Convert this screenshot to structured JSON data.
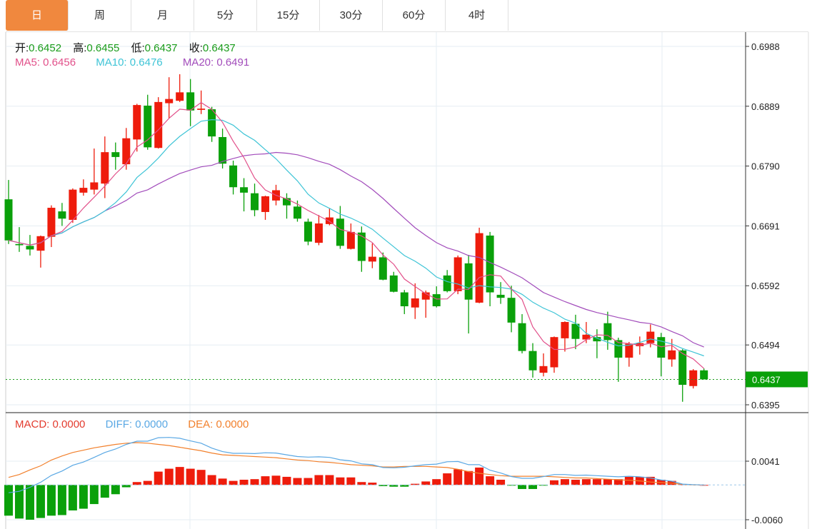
{
  "tabs": [
    {
      "label": "日",
      "active": true
    },
    {
      "label": "周"
    },
    {
      "label": "月"
    },
    {
      "label": "5分"
    },
    {
      "label": "15分"
    },
    {
      "label": "30分"
    },
    {
      "label": "60分"
    },
    {
      "label": "4时"
    }
  ],
  "ohlc_info": {
    "open_label": "开:",
    "open": "0.6452",
    "high_label": "高:",
    "high": "0.6455",
    "low_label": "低:",
    "low": "0.6437",
    "close_label": "收:",
    "close": "0.6437"
  },
  "ma_info": {
    "ma5": "MA5: 0.6456",
    "ma10": "MA10: 0.6476",
    "ma20": "MA20: 0.6491"
  },
  "macd_info": {
    "macd": "MACD: 0.0000",
    "diff": "DIFF: 0.0000",
    "dea": "DEA: 0.0000"
  },
  "colors": {
    "up": "#EE1C0C",
    "down": "#0AA00A",
    "ma5": "#E2508A",
    "ma10": "#3EC4D6",
    "ma20": "#A24CBB",
    "diff": "#5AA8E4",
    "dea": "#F2802C",
    "active_tab": "#F0883E"
  },
  "chart_data": {
    "type": "candlestick",
    "price_axis": {
      "ticks": [
        "0.6988",
        "0.6889",
        "0.6790",
        "0.6691",
        "0.6592",
        "0.6494",
        "0.6395"
      ],
      "range": [
        0.6395,
        0.6988
      ]
    },
    "current_price": "0.6437",
    "macd_axis": {
      "ticks": [
        "0.0041",
        "-0.0060"
      ],
      "range": [
        -0.006,
        0.0041
      ]
    },
    "candles": [
      [
        0.6735,
        0.6767,
        0.6661,
        0.6667
      ],
      [
        0.6661,
        0.6689,
        0.6648,
        0.6659
      ],
      [
        0.6658,
        0.6676,
        0.6642,
        0.6652
      ],
      [
        0.665,
        0.6675,
        0.6622,
        0.6674
      ],
      [
        0.6673,
        0.6725,
        0.6656,
        0.6721
      ],
      [
        0.6715,
        0.6729,
        0.6691,
        0.6703
      ],
      [
        0.6701,
        0.6753,
        0.6696,
        0.6751
      ],
      [
        0.6746,
        0.6768,
        0.6741,
        0.6754
      ],
      [
        0.6751,
        0.6819,
        0.6743,
        0.6763
      ],
      [
        0.6761,
        0.6839,
        0.6737,
        0.6813
      ],
      [
        0.6813,
        0.6829,
        0.6784,
        0.6805
      ],
      [
        0.6793,
        0.6853,
        0.6784,
        0.6836
      ],
      [
        0.6834,
        0.6893,
        0.6814,
        0.6891
      ],
      [
        0.689,
        0.6908,
        0.6817,
        0.6821
      ],
      [
        0.682,
        0.6904,
        0.6819,
        0.6896
      ],
      [
        0.6894,
        0.6937,
        0.6869,
        0.6901
      ],
      [
        0.6898,
        0.6942,
        0.6896,
        0.6912
      ],
      [
        0.6912,
        0.6934,
        0.6856,
        0.6882
      ],
      [
        0.6883,
        0.6915,
        0.6876,
        0.6885
      ],
      [
        0.6884,
        0.6888,
        0.683,
        0.6839
      ],
      [
        0.6838,
        0.6852,
        0.6786,
        0.6794
      ],
      [
        0.6791,
        0.6799,
        0.6743,
        0.6755
      ],
      [
        0.6755,
        0.677,
        0.6715,
        0.6746
      ],
      [
        0.6745,
        0.6761,
        0.6707,
        0.6717
      ],
      [
        0.6714,
        0.6741,
        0.6701,
        0.674
      ],
      [
        0.6733,
        0.6759,
        0.6725,
        0.675
      ],
      [
        0.6737,
        0.6745,
        0.6703,
        0.6725
      ],
      [
        0.6723,
        0.6733,
        0.6698,
        0.6703
      ],
      [
        0.6698,
        0.6703,
        0.6659,
        0.6665
      ],
      [
        0.6663,
        0.6709,
        0.6659,
        0.6695
      ],
      [
        0.6694,
        0.672,
        0.6692,
        0.6705
      ],
      [
        0.6703,
        0.6724,
        0.6653,
        0.6658
      ],
      [
        0.6653,
        0.6695,
        0.6652,
        0.6681
      ],
      [
        0.668,
        0.669,
        0.6615,
        0.6633
      ],
      [
        0.6632,
        0.6662,
        0.6621,
        0.664
      ],
      [
        0.6639,
        0.6647,
        0.6601,
        0.6602
      ],
      [
        0.6609,
        0.6615,
        0.6581,
        0.6582
      ],
      [
        0.6581,
        0.6585,
        0.6545,
        0.6558
      ],
      [
        0.6556,
        0.6596,
        0.6537,
        0.6571
      ],
      [
        0.6569,
        0.6584,
        0.6539,
        0.6581
      ],
      [
        0.6578,
        0.6591,
        0.6556,
        0.6558
      ],
      [
        0.6609,
        0.6618,
        0.6581,
        0.6583
      ],
      [
        0.6583,
        0.6642,
        0.6578,
        0.6639
      ],
      [
        0.6629,
        0.6643,
        0.6513,
        0.6569
      ],
      [
        0.6564,
        0.6688,
        0.6563,
        0.6679
      ],
      [
        0.6675,
        0.6681,
        0.6558,
        0.6581
      ],
      [
        0.6577,
        0.6598,
        0.6562,
        0.6572
      ],
      [
        0.6572,
        0.6592,
        0.6515,
        0.6531
      ],
      [
        0.653,
        0.6545,
        0.648,
        0.6484
      ],
      [
        0.6484,
        0.6497,
        0.644,
        0.6452
      ],
      [
        0.6448,
        0.648,
        0.6442,
        0.6459
      ],
      [
        0.6457,
        0.6508,
        0.6448,
        0.6507
      ],
      [
        0.6505,
        0.6533,
        0.6483,
        0.6532
      ],
      [
        0.6529,
        0.6544,
        0.6487,
        0.6504
      ],
      [
        0.6503,
        0.6532,
        0.6497,
        0.6511
      ],
      [
        0.6507,
        0.652,
        0.6472,
        0.65
      ],
      [
        0.653,
        0.6549,
        0.6486,
        0.6502
      ],
      [
        0.6502,
        0.6506,
        0.6433,
        0.6473
      ],
      [
        0.6473,
        0.6499,
        0.6458,
        0.6496
      ],
      [
        0.6492,
        0.6508,
        0.6478,
        0.6497
      ],
      [
        0.6497,
        0.6528,
        0.649,
        0.6516
      ],
      [
        0.6507,
        0.6514,
        0.6442,
        0.6473
      ],
      [
        0.647,
        0.6504,
        0.6458,
        0.6485
      ],
      [
        0.6485,
        0.6487,
        0.64,
        0.6428
      ],
      [
        0.6426,
        0.6454,
        0.6422,
        0.6452
      ],
      [
        0.6452,
        0.6455,
        0.6437,
        0.6437
      ]
    ],
    "macd_hist": [
      -0.0053,
      -0.0058,
      -0.006,
      -0.0057,
      -0.0053,
      -0.0052,
      -0.0044,
      -0.0041,
      -0.0033,
      -0.0022,
      -0.0016,
      -0.0004,
      0.0005,
      0.0007,
      0.0023,
      0.0028,
      0.0031,
      0.0028,
      0.0026,
      0.0017,
      0.0011,
      0.0007,
      0.0009,
      0.001,
      0.0015,
      0.0016,
      0.0014,
      0.0012,
      0.0012,
      0.0017,
      0.0017,
      0.0013,
      0.0013,
      0.0005,
      0.0004,
      -0.0002,
      -0.0003,
      -0.0003,
      0.0002,
      0.0006,
      0.001,
      0.002,
      0.0027,
      0.0024,
      0.003,
      0.0015,
      0.0009,
      -0.0001,
      -0.0007,
      -0.0007,
      -0.0001,
      0.0008,
      0.001,
      0.0009,
      0.001,
      0.001,
      0.001,
      0.001,
      0.0014,
      0.0014,
      0.0014,
      0.0009,
      0.0007,
      0.0001,
      0.0001,
      0.0
    ],
    "dea": [
      0.0013,
      0.0018,
      0.0026,
      0.0033,
      0.0043,
      0.005,
      0.0056,
      0.006,
      0.0064,
      0.0067,
      0.007,
      0.0072,
      0.0073,
      0.0072,
      0.007,
      0.0068,
      0.0065,
      0.0062,
      0.0059,
      0.0055,
      0.0052,
      0.0051,
      0.005,
      0.0049,
      0.0048,
      0.0047,
      0.0045,
      0.0043,
      0.0042,
      0.004,
      0.0039,
      0.0037,
      0.0035,
      0.0034,
      0.0033,
      0.0031,
      0.0031,
      0.0032,
      0.0032,
      0.0032,
      0.0031,
      0.003,
      0.0027,
      0.0023,
      0.002,
      0.0018,
      0.0016,
      0.0015,
      0.0015,
      0.0015,
      0.0015,
      0.0014,
      0.0013,
      0.0012,
      0.0012,
      0.0011,
      0.001,
      0.0009,
      0.0008,
      0.0007,
      0.0005,
      0.0004,
      0.0003,
      0.0001,
      0.0,
      0.0
    ]
  }
}
